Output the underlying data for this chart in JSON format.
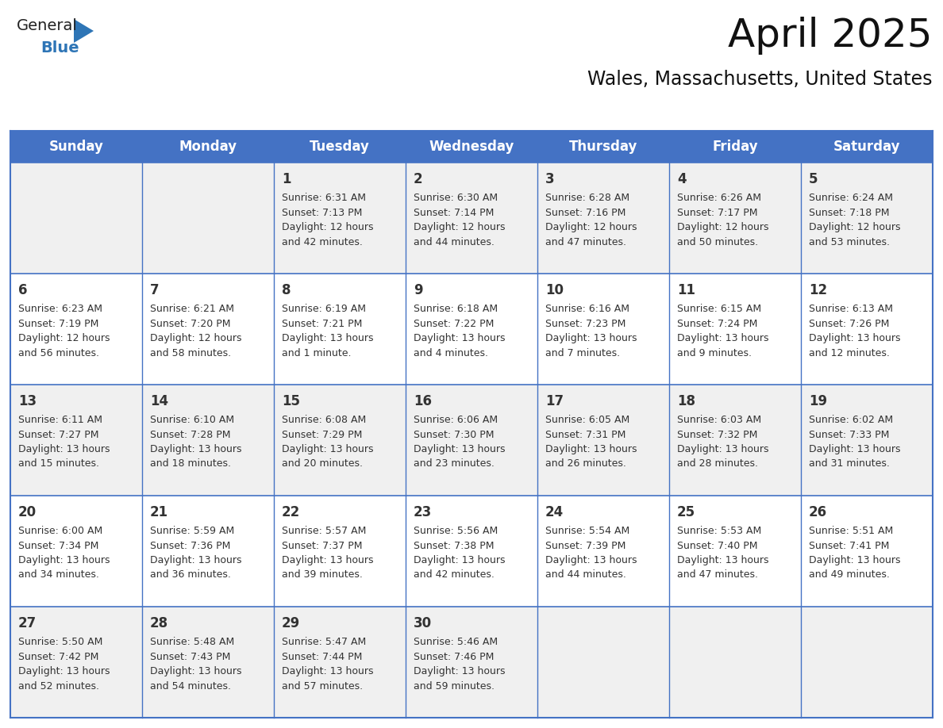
{
  "title": "April 2025",
  "subtitle": "Wales, Massachusetts, United States",
  "header_bg": "#4472C4",
  "header_text_color": "#FFFFFF",
  "cell_bg_row0": "#F0F0F0",
  "cell_bg_row1": "#FFFFFF",
  "cell_bg_row2": "#F0F0F0",
  "cell_bg_row3": "#FFFFFF",
  "cell_bg_row4": "#F0F0F0",
  "border_color": "#4472C4",
  "text_color": "#333333",
  "days_of_week": [
    "Sunday",
    "Monday",
    "Tuesday",
    "Wednesday",
    "Thursday",
    "Friday",
    "Saturday"
  ],
  "weeks": [
    [
      {
        "day": "",
        "info": ""
      },
      {
        "day": "",
        "info": ""
      },
      {
        "day": "1",
        "info": "Sunrise: 6:31 AM\nSunset: 7:13 PM\nDaylight: 12 hours\nand 42 minutes."
      },
      {
        "day": "2",
        "info": "Sunrise: 6:30 AM\nSunset: 7:14 PM\nDaylight: 12 hours\nand 44 minutes."
      },
      {
        "day": "3",
        "info": "Sunrise: 6:28 AM\nSunset: 7:16 PM\nDaylight: 12 hours\nand 47 minutes."
      },
      {
        "day": "4",
        "info": "Sunrise: 6:26 AM\nSunset: 7:17 PM\nDaylight: 12 hours\nand 50 minutes."
      },
      {
        "day": "5",
        "info": "Sunrise: 6:24 AM\nSunset: 7:18 PM\nDaylight: 12 hours\nand 53 minutes."
      }
    ],
    [
      {
        "day": "6",
        "info": "Sunrise: 6:23 AM\nSunset: 7:19 PM\nDaylight: 12 hours\nand 56 minutes."
      },
      {
        "day": "7",
        "info": "Sunrise: 6:21 AM\nSunset: 7:20 PM\nDaylight: 12 hours\nand 58 minutes."
      },
      {
        "day": "8",
        "info": "Sunrise: 6:19 AM\nSunset: 7:21 PM\nDaylight: 13 hours\nand 1 minute."
      },
      {
        "day": "9",
        "info": "Sunrise: 6:18 AM\nSunset: 7:22 PM\nDaylight: 13 hours\nand 4 minutes."
      },
      {
        "day": "10",
        "info": "Sunrise: 6:16 AM\nSunset: 7:23 PM\nDaylight: 13 hours\nand 7 minutes."
      },
      {
        "day": "11",
        "info": "Sunrise: 6:15 AM\nSunset: 7:24 PM\nDaylight: 13 hours\nand 9 minutes."
      },
      {
        "day": "12",
        "info": "Sunrise: 6:13 AM\nSunset: 7:26 PM\nDaylight: 13 hours\nand 12 minutes."
      }
    ],
    [
      {
        "day": "13",
        "info": "Sunrise: 6:11 AM\nSunset: 7:27 PM\nDaylight: 13 hours\nand 15 minutes."
      },
      {
        "day": "14",
        "info": "Sunrise: 6:10 AM\nSunset: 7:28 PM\nDaylight: 13 hours\nand 18 minutes."
      },
      {
        "day": "15",
        "info": "Sunrise: 6:08 AM\nSunset: 7:29 PM\nDaylight: 13 hours\nand 20 minutes."
      },
      {
        "day": "16",
        "info": "Sunrise: 6:06 AM\nSunset: 7:30 PM\nDaylight: 13 hours\nand 23 minutes."
      },
      {
        "day": "17",
        "info": "Sunrise: 6:05 AM\nSunset: 7:31 PM\nDaylight: 13 hours\nand 26 minutes."
      },
      {
        "day": "18",
        "info": "Sunrise: 6:03 AM\nSunset: 7:32 PM\nDaylight: 13 hours\nand 28 minutes."
      },
      {
        "day": "19",
        "info": "Sunrise: 6:02 AM\nSunset: 7:33 PM\nDaylight: 13 hours\nand 31 minutes."
      }
    ],
    [
      {
        "day": "20",
        "info": "Sunrise: 6:00 AM\nSunset: 7:34 PM\nDaylight: 13 hours\nand 34 minutes."
      },
      {
        "day": "21",
        "info": "Sunrise: 5:59 AM\nSunset: 7:36 PM\nDaylight: 13 hours\nand 36 minutes."
      },
      {
        "day": "22",
        "info": "Sunrise: 5:57 AM\nSunset: 7:37 PM\nDaylight: 13 hours\nand 39 minutes."
      },
      {
        "day": "23",
        "info": "Sunrise: 5:56 AM\nSunset: 7:38 PM\nDaylight: 13 hours\nand 42 minutes."
      },
      {
        "day": "24",
        "info": "Sunrise: 5:54 AM\nSunset: 7:39 PM\nDaylight: 13 hours\nand 44 minutes."
      },
      {
        "day": "25",
        "info": "Sunrise: 5:53 AM\nSunset: 7:40 PM\nDaylight: 13 hours\nand 47 minutes."
      },
      {
        "day": "26",
        "info": "Sunrise: 5:51 AM\nSunset: 7:41 PM\nDaylight: 13 hours\nand 49 minutes."
      }
    ],
    [
      {
        "day": "27",
        "info": "Sunrise: 5:50 AM\nSunset: 7:42 PM\nDaylight: 13 hours\nand 52 minutes."
      },
      {
        "day": "28",
        "info": "Sunrise: 5:48 AM\nSunset: 7:43 PM\nDaylight: 13 hours\nand 54 minutes."
      },
      {
        "day": "29",
        "info": "Sunrise: 5:47 AM\nSunset: 7:44 PM\nDaylight: 13 hours\nand 57 minutes."
      },
      {
        "day": "30",
        "info": "Sunrise: 5:46 AM\nSunset: 7:46 PM\nDaylight: 13 hours\nand 59 minutes."
      },
      {
        "day": "",
        "info": ""
      },
      {
        "day": "",
        "info": ""
      },
      {
        "day": "",
        "info": ""
      }
    ]
  ],
  "logo_text1": "General",
  "logo_text2": "Blue",
  "logo_tri_color": "#2E75B6",
  "logo_text1_color": "#222222",
  "title_fontsize": 36,
  "subtitle_fontsize": 17,
  "header_fontsize": 12,
  "day_num_fontsize": 12,
  "info_fontsize": 9
}
